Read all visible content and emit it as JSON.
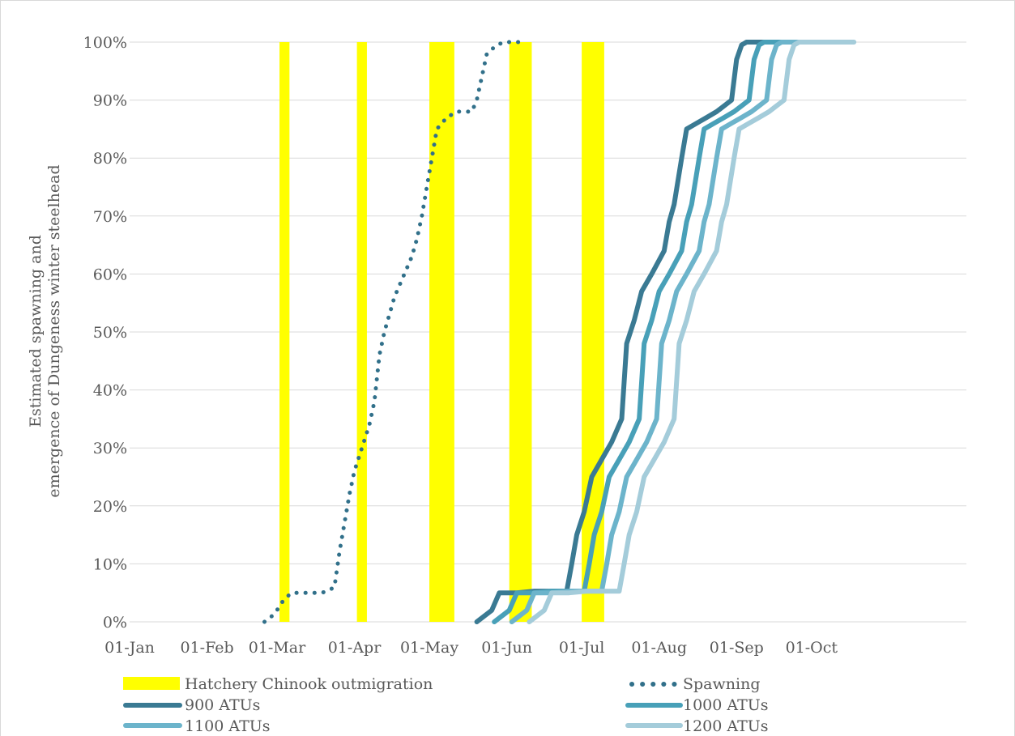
{
  "chart_data": {
    "type": "line",
    "ylabel_lines": [
      "Estimated spawning and",
      "emergence of Dungeness winter steelhead"
    ],
    "xlabel": "",
    "title": "",
    "x_ticks": [
      "01-Jan",
      "01-Feb",
      "01-Mar",
      "01-Apr",
      "01-May",
      "01-Jun",
      "01-Jul",
      "01-Aug",
      "01-Sep",
      "01-Oct"
    ],
    "y_ticks": [
      "0%",
      "10%",
      "20%",
      "30%",
      "40%",
      "50%",
      "60%",
      "70%",
      "80%",
      "90%",
      "100%"
    ],
    "x_range_days": [
      0,
      335
    ],
    "ylim": [
      0,
      100
    ],
    "grid": "horizontal",
    "legend_position": "bottom",
    "colors": {
      "hatchery": "#ffff00",
      "spawning": "#31708a",
      "900": "#3a7a93",
      "1000": "#48a0b8",
      "1100": "#6cb4cb",
      "1200": "#a4ccda",
      "grid": "#d9d9d9",
      "text": "#595959"
    },
    "hatchery_bars": {
      "name": "Hatchery Chinook outmigration",
      "ranges_days": [
        [
          60,
          64
        ],
        [
          91,
          95
        ],
        [
          120,
          130
        ],
        [
          152,
          161
        ],
        [
          181,
          190
        ]
      ]
    },
    "series": [
      {
        "name": "Spawning",
        "key": "spawning",
        "style": "dotted",
        "points": [
          [
            54,
            0
          ],
          [
            57,
            1
          ],
          [
            59,
            2
          ],
          [
            62,
            4
          ],
          [
            65,
            5
          ],
          [
            68,
            5
          ],
          [
            72,
            5
          ],
          [
            77,
            5
          ],
          [
            80,
            5.5
          ],
          [
            82,
            6
          ],
          [
            84,
            12
          ],
          [
            86,
            17
          ],
          [
            88,
            22
          ],
          [
            90,
            26
          ],
          [
            93,
            30
          ],
          [
            96,
            34
          ],
          [
            98,
            38
          ],
          [
            100,
            46
          ],
          [
            102,
            50
          ],
          [
            104,
            53
          ],
          [
            106,
            56
          ],
          [
            108,
            58
          ],
          [
            111,
            61
          ],
          [
            113,
            63
          ],
          [
            115,
            66
          ],
          [
            117,
            70
          ],
          [
            119,
            75
          ],
          [
            121,
            80
          ],
          [
            123,
            85
          ],
          [
            127,
            87
          ],
          [
            131,
            88
          ],
          [
            137,
            88
          ],
          [
            139,
            90
          ],
          [
            141,
            94
          ],
          [
            143,
            98
          ],
          [
            147,
            99.5
          ],
          [
            150,
            100
          ],
          [
            158,
            100
          ]
        ]
      },
      {
        "name": "900 ATUs",
        "key": "900",
        "style": "solid",
        "points": [
          [
            139,
            0
          ],
          [
            145,
            2
          ],
          [
            148,
            5
          ],
          [
            155,
            5
          ],
          [
            162,
            5.3
          ],
          [
            175,
            5.3
          ],
          [
            177,
            10
          ],
          [
            179,
            15
          ],
          [
            182,
            19
          ],
          [
            185,
            25
          ],
          [
            189,
            28
          ],
          [
            193,
            31
          ],
          [
            197,
            35
          ],
          [
            199,
            48
          ],
          [
            202,
            52
          ],
          [
            205,
            57
          ],
          [
            209,
            60
          ],
          [
            214,
            64
          ],
          [
            216,
            69
          ],
          [
            218,
            72
          ],
          [
            221,
            80
          ],
          [
            223,
            85
          ],
          [
            227,
            86
          ],
          [
            231,
            87
          ],
          [
            235,
            88
          ],
          [
            238,
            89
          ],
          [
            241,
            90
          ],
          [
            243,
            97
          ],
          [
            245,
            99.5
          ],
          [
            247,
            100
          ],
          [
            260,
            100
          ]
        ]
      },
      {
        "name": "1000 ATUs",
        "key": "1000",
        "style": "solid",
        "points": [
          [
            146,
            0
          ],
          [
            152,
            2
          ],
          [
            155,
            5
          ],
          [
            162,
            5
          ],
          [
            169,
            5.3
          ],
          [
            182,
            5.3
          ],
          [
            184,
            10
          ],
          [
            186,
            15
          ],
          [
            189,
            19
          ],
          [
            192,
            25
          ],
          [
            196,
            28
          ],
          [
            200,
            31
          ],
          [
            204,
            35
          ],
          [
            206,
            48
          ],
          [
            209,
            52
          ],
          [
            212,
            57
          ],
          [
            216,
            60
          ],
          [
            221,
            64
          ],
          [
            223,
            69
          ],
          [
            225,
            72
          ],
          [
            228,
            80
          ],
          [
            230,
            85
          ],
          [
            234,
            86
          ],
          [
            238,
            87
          ],
          [
            242,
            88
          ],
          [
            245,
            89
          ],
          [
            248,
            90
          ],
          [
            250,
            97
          ],
          [
            252,
            99.5
          ],
          [
            254,
            100
          ],
          [
            267,
            100
          ]
        ]
      },
      {
        "name": "1100 ATUs",
        "key": "1100",
        "style": "solid",
        "points": [
          [
            153,
            0
          ],
          [
            159,
            2
          ],
          [
            162,
            5
          ],
          [
            169,
            5
          ],
          [
            176,
            5.3
          ],
          [
            189,
            5.3
          ],
          [
            191,
            10
          ],
          [
            193,
            15
          ],
          [
            196,
            19
          ],
          [
            199,
            25
          ],
          [
            203,
            28
          ],
          [
            207,
            31
          ],
          [
            211,
            35
          ],
          [
            213,
            48
          ],
          [
            216,
            52
          ],
          [
            219,
            57
          ],
          [
            223,
            60
          ],
          [
            228,
            64
          ],
          [
            230,
            69
          ],
          [
            232,
            72
          ],
          [
            235,
            80
          ],
          [
            237,
            85
          ],
          [
            241,
            86
          ],
          [
            245,
            87
          ],
          [
            249,
            88
          ],
          [
            252,
            89
          ],
          [
            255,
            90
          ],
          [
            257,
            97
          ],
          [
            259,
            99.5
          ],
          [
            261,
            100
          ],
          [
            274,
            100
          ]
        ]
      },
      {
        "name": "1200 ATUs",
        "key": "1200",
        "style": "solid",
        "points": [
          [
            160,
            0
          ],
          [
            166,
            2
          ],
          [
            169,
            5
          ],
          [
            176,
            5
          ],
          [
            183,
            5.3
          ],
          [
            196,
            5.3
          ],
          [
            198,
            10
          ],
          [
            200,
            15
          ],
          [
            203,
            19
          ],
          [
            206,
            25
          ],
          [
            210,
            28
          ],
          [
            214,
            31
          ],
          [
            218,
            35
          ],
          [
            220,
            48
          ],
          [
            223,
            52
          ],
          [
            226,
            57
          ],
          [
            230,
            60
          ],
          [
            235,
            64
          ],
          [
            237,
            69
          ],
          [
            239,
            72
          ],
          [
            242,
            80
          ],
          [
            244,
            85
          ],
          [
            248,
            86
          ],
          [
            252,
            87
          ],
          [
            256,
            88
          ],
          [
            259,
            89
          ],
          [
            262,
            90
          ],
          [
            264,
            97
          ],
          [
            266,
            99.5
          ],
          [
            268,
            100
          ],
          [
            290,
            100
          ]
        ]
      }
    ]
  },
  "legend": {
    "hatchery_label": "Hatchery Chinook outmigration",
    "spawning_label": "Spawning",
    "atu900_label": "900 ATUs",
    "atu1000_label": "1000 ATUs",
    "atu1100_label": "1100 ATUs",
    "atu1200_label": "1200 ATUs"
  }
}
